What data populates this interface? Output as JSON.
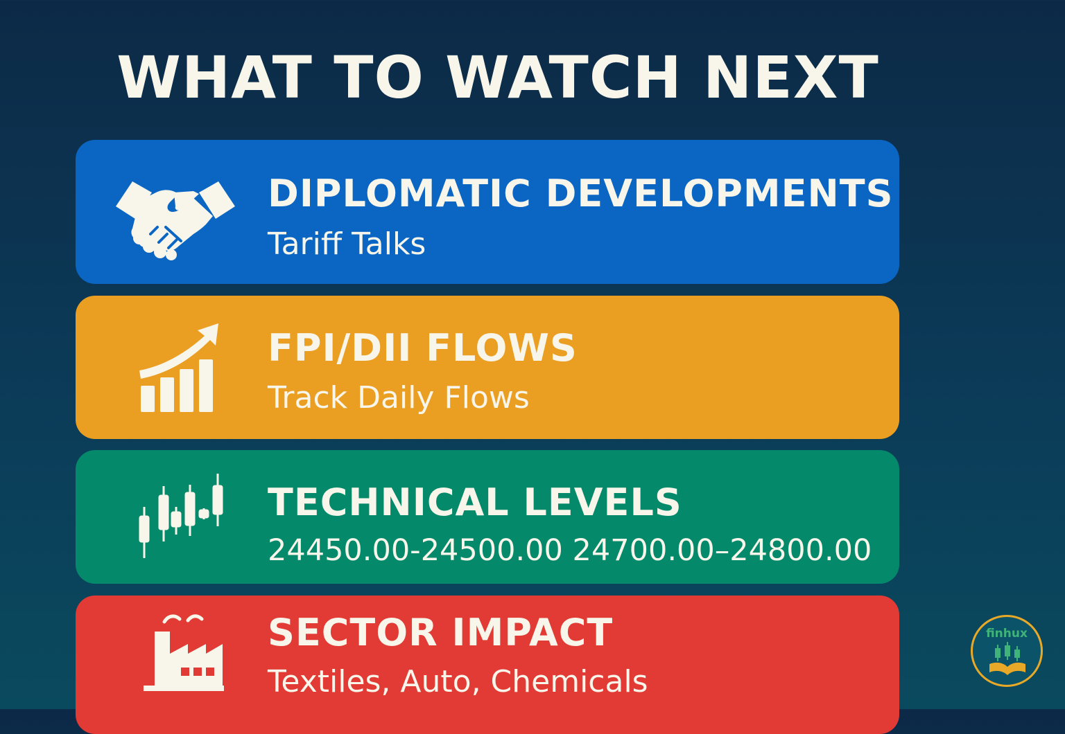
{
  "page": {
    "title": "WHAT TO WATCH NEXT",
    "background_colors": [
      "#0c2a47",
      "#0a4a5e"
    ]
  },
  "cards": [
    {
      "title": "DIPLOMATIC DEVELOPMENTS",
      "subtitle": "Tariff Talks",
      "icon": "handshake-icon",
      "color": "#0b66c3"
    },
    {
      "title": "FPI/DII FLOWS",
      "subtitle": "Track Daily Flows",
      "icon": "rising-bar-chart-icon",
      "color": "#eb9f22"
    },
    {
      "title": "TECHNICAL LEVELS",
      "subtitle": "24450.00-24500.00  24700.00–24800.00",
      "icon": "candlestick-icon",
      "color": "#04896a"
    },
    {
      "title": "SECTOR IMPACT",
      "subtitle": "Textiles, Auto, Chemicals",
      "icon": "factory-icon",
      "color": "#e23a34"
    }
  ],
  "logo": {
    "text": "finhux",
    "icon": "candlestick-book-logo"
  }
}
